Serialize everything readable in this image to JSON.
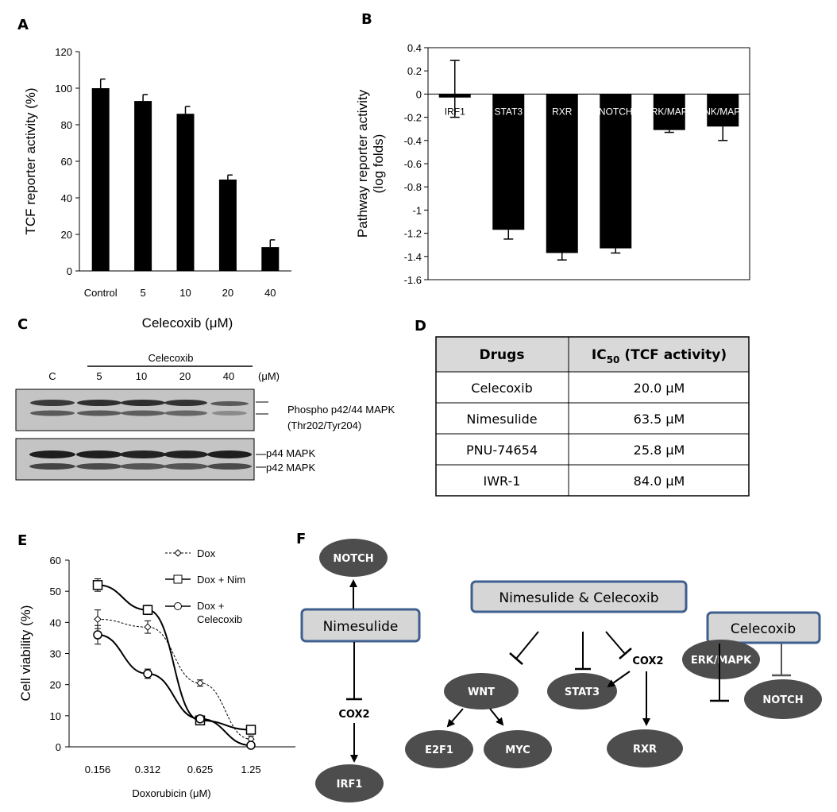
{
  "panels": {
    "A": "A",
    "B": "B",
    "C": "C",
    "D": "D",
    "E": "E",
    "F": "F"
  },
  "chart_data": [
    {
      "panel": "A",
      "type": "bar",
      "categories": [
        "Control",
        "5",
        "10",
        "20",
        "40"
      ],
      "values": [
        100,
        93,
        86,
        50,
        13
      ],
      "errors": [
        5,
        3.5,
        4,
        2.5,
        4
      ],
      "title": "",
      "xlabel": "Celecoxib (μM)",
      "ylabel": "TCF reporter activity (%)",
      "ylim": [
        0,
        120
      ],
      "yticks": [
        "0",
        "20",
        "40",
        "60",
        "80",
        "100",
        "120"
      ],
      "color": "#000000"
    },
    {
      "panel": "B",
      "type": "bar",
      "categories": [
        "IRF1",
        "STAT3",
        "RXR",
        "NOTCH",
        "ERK/MAPK",
        "JNK/MAPK"
      ],
      "values": [
        -0.03,
        -1.17,
        -1.37,
        -1.33,
        -0.31,
        -0.28
      ],
      "errors": [
        0.17,
        0.08,
        0.06,
        0.04,
        0.02,
        0.12
      ],
      "title": "",
      "ylabel_lines": [
        "Pathway reporter activity",
        "(log folds)"
      ],
      "ylim": [
        -1.6,
        0.4
      ],
      "yticks": [
        "0.4",
        "0.2",
        "0",
        "-0.2",
        "-0.4",
        "-0.6",
        "-0.8",
        "-1",
        "-1.2",
        "-1.4",
        "-1.6"
      ],
      "color": "#000000"
    },
    {
      "panel": "E",
      "type": "line",
      "x": [
        "0.156",
        "0.312",
        "0.625",
        "1.25"
      ],
      "xlabel": "Doxorubicin (μM)",
      "ylabel": "Cell viability (%)",
      "ylim": [
        0,
        60
      ],
      "yticks": [
        "0",
        "10",
        "20",
        "30",
        "40",
        "50",
        "60"
      ],
      "series": [
        {
          "name": "Dox",
          "values": [
            41,
            38.5,
            20.5,
            2.5
          ],
          "errors": [
            3,
            2,
            1,
            1
          ],
          "marker": "diamond",
          "dashed": true
        },
        {
          "name": "Dox + Nim",
          "values": [
            52,
            44,
            8.5,
            5.5
          ],
          "errors": [
            2,
            1.5,
            1,
            1
          ],
          "marker": "square",
          "dashed": false
        },
        {
          "name_lines": [
            "Dox +",
            "Celecoxib"
          ],
          "values": [
            36,
            23.5,
            9,
            0.5
          ],
          "errors": [
            3,
            1.5,
            1,
            0.5
          ],
          "marker": "circle",
          "dashed": false
        }
      ]
    }
  ],
  "blot": {
    "treatment": "Celecoxib",
    "lanes": [
      "C",
      "5",
      "10",
      "20",
      "40"
    ],
    "unit": "(μM)",
    "label_phospho_1": "Phospho p42/44 MAPK",
    "label_phospho_2": "(Thr202/Tyr204)",
    "label_p44": "p44 MAPK",
    "label_p42": "p42 MAPK"
  },
  "table": {
    "header_drugs": "Drugs",
    "header_ic": "IC",
    "header_sub": "50",
    "header_rest": " (TCF activity)",
    "rows": [
      {
        "drug": "Celecoxib",
        "value": "20.0 μM"
      },
      {
        "drug": "Nimesulide",
        "value": "63.5 μM"
      },
      {
        "drug": "PNU-74654",
        "value": "25.8 μM"
      },
      {
        "drug": "IWR-1",
        "value": "84.0 μM"
      }
    ]
  },
  "diagram": {
    "nimesulide": "Nimesulide",
    "combo": "Nimesulide & Celecoxib",
    "celecoxib": "Celecoxib",
    "notch_top": "NOTCH",
    "cox2_left": "COX2",
    "irf1": "IRF1",
    "wnt": "WNT",
    "e2f1": "E2F1",
    "myc": "MYC",
    "stat3": "STAT3",
    "cox2_mid": "COX2",
    "rxr": "RXR",
    "erk": "ERK/MAPK",
    "notch_right": "NOTCH"
  },
  "colors": {
    "node_fill": "#4d4d4d",
    "box_fill": "#d6d6d6",
    "box_stroke": "#3f5f8f",
    "table_header": "#d9d9d9"
  }
}
